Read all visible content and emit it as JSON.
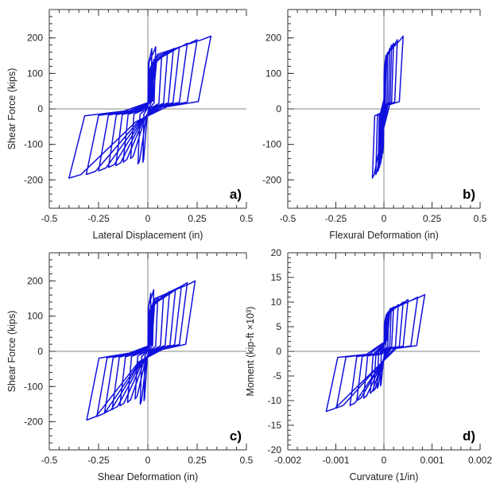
{
  "colors": {
    "series": "#1010dd",
    "axis": "#333333",
    "zero": "#8a8a8a"
  },
  "chart_data": [
    {
      "type": "line",
      "panel_label": "a)",
      "xlabel": "Lateral Displacement (in)",
      "ylabel": "Shear Force (kips)",
      "xlim": [
        -0.5,
        0.5
      ],
      "ylim": [
        -280,
        280
      ],
      "xticks": [
        -0.5,
        -0.25,
        0,
        0.25,
        0.5
      ],
      "xtick_labels": [
        "-0.5",
        "-0.25",
        "0",
        "0.25",
        "0.5"
      ],
      "yticks": [
        -200,
        -100,
        0,
        100,
        200
      ],
      "ytick_labels": [
        "-200",
        "-100",
        "0",
        "100",
        "200"
      ],
      "minor_x_step": 0.05,
      "minor_y_step": 20,
      "series": [
        {
          "amps": [
            0.02,
            0.04,
            0.07,
            0.1,
            0.13,
            0.16,
            0.2,
            0.25,
            0.3
          ],
          "peaks_pos": [
            170,
            175,
            150,
            160,
            170,
            175,
            185,
            195,
            205
          ],
          "peaks_neg": [
            -150,
            -155,
            -140,
            -150,
            -160,
            -165,
            -175,
            -185,
            -195
          ],
          "max_pos": 0.32,
          "max_neg": -0.4,
          "plateau": 60
        }
      ]
    },
    {
      "type": "line",
      "panel_label": "b)",
      "xlabel": "Flexural Deformation (in)",
      "ylabel": "",
      "xlim": [
        -0.5,
        0.5
      ],
      "ylim": [
        -280,
        280
      ],
      "xticks": [
        -0.5,
        -0.25,
        0,
        0.25,
        0.5
      ],
      "xtick_labels": [
        "-0.5",
        "-0.25",
        "0",
        "0.25",
        "0.5"
      ],
      "yticks": [
        -200,
        -100,
        0,
        100,
        200
      ],
      "ytick_labels": [
        "-200",
        "-100",
        "0",
        "100",
        "200"
      ],
      "minor_x_step": 0.05,
      "minor_y_step": 20,
      "series": [
        {
          "amps": [
            0.005,
            0.01,
            0.02,
            0.03,
            0.04,
            0.05,
            0.07,
            0.09
          ],
          "peaks_pos": [
            130,
            150,
            160,
            170,
            180,
            185,
            195,
            205
          ],
          "peaks_neg": [
            -110,
            -125,
            -140,
            -155,
            -165,
            -175,
            -185,
            -195
          ],
          "max_pos": 0.1,
          "max_neg": -0.06,
          "plateau": 120
        }
      ]
    },
    {
      "type": "line",
      "panel_label": "c)",
      "xlabel": "Shear Deformation (in)",
      "ylabel": "Shear Force (kips)",
      "xlim": [
        -0.5,
        0.5
      ],
      "ylim": [
        -280,
        280
      ],
      "xticks": [
        -0.5,
        -0.25,
        0,
        0.25,
        0.5
      ],
      "xtick_labels": [
        "-0.5",
        "-0.25",
        "0",
        "0.25",
        "0.5"
      ],
      "yticks": [
        -200,
        -100,
        0,
        100,
        200
      ],
      "ytick_labels": [
        "-200",
        "-100",
        "0",
        "100",
        "200"
      ],
      "minor_x_step": 0.05,
      "minor_y_step": 20,
      "series": [
        {
          "amps": [
            0.015,
            0.03,
            0.05,
            0.08,
            0.11,
            0.14,
            0.17,
            0.2,
            0.23
          ],
          "peaks_pos": [
            165,
            175,
            150,
            160,
            170,
            175,
            185,
            195,
            200
          ],
          "peaks_neg": [
            -140,
            -150,
            -135,
            -145,
            -155,
            -165,
            -175,
            -185,
            -195
          ],
          "max_pos": 0.24,
          "max_neg": -0.31,
          "plateau": 50
        }
      ]
    },
    {
      "type": "line",
      "panel_label": "d)",
      "xlabel": "Curvature (1/in)",
      "ylabel": "Moment (kip-ft ×10³)",
      "xlim": [
        -0.002,
        0.002
      ],
      "ylim": [
        -20,
        20
      ],
      "xticks": [
        -0.002,
        -0.001,
        0,
        0.001,
        0.002
      ],
      "xtick_labels": [
        "-0.002",
        "-0.001",
        "0",
        "0.001",
        "0.002"
      ],
      "yticks": [
        -20,
        -15,
        -10,
        -5,
        0,
        5,
        10,
        15,
        20
      ],
      "ytick_labels": [
        "-20",
        "-15",
        "-10",
        "-5",
        "0",
        "5",
        "10",
        "15",
        "20"
      ],
      "minor_x_step": 0.0002,
      "minor_y_step": 1,
      "series": [
        {
          "amps": [
            5e-05,
            0.0001,
            0.00015,
            0.0002,
            0.0003,
            0.0004,
            0.0005,
            0.0007,
            0.00085
          ],
          "peaks_pos": [
            7.5,
            8,
            8.5,
            9,
            9.5,
            10,
            10.5,
            11,
            11.5
          ],
          "peaks_neg": [
            -7,
            -7.5,
            -8,
            -8.5,
            -9.5,
            -10,
            -11,
            -11.5,
            -12.2
          ],
          "max_pos": 0.00085,
          "max_neg": -0.0012,
          "plateau": 6
        }
      ]
    }
  ]
}
